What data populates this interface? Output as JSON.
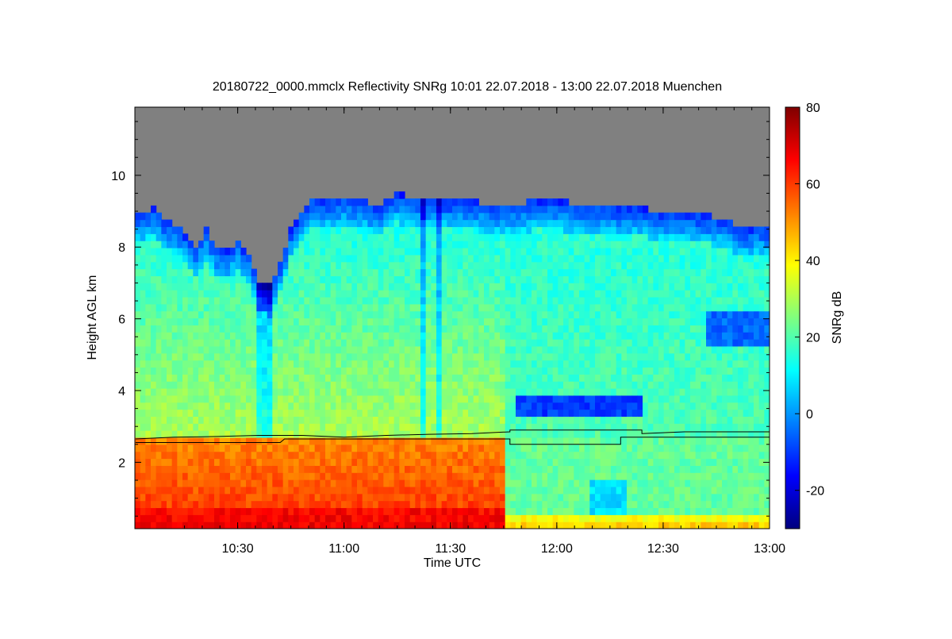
{
  "chart_data": {
    "type": "heatmap",
    "title": "20180722_0000.mmclx Reflectivity SNRg   10:01 22.07.2018 - 13:00 22.07.2018 Muenchen",
    "xlabel": "Time UTC",
    "ylabel": "Height AGL km",
    "xlim": [
      10.0167,
      13.0
    ],
    "ylim": [
      0.15,
      11.9
    ],
    "x_ticks": [
      {
        "value": 10.5,
        "label": "10:30"
      },
      {
        "value": 11.0,
        "label": "11:00"
      },
      {
        "value": 11.5,
        "label": "11:30"
      },
      {
        "value": 12.0,
        "label": "12:00"
      },
      {
        "value": 12.5,
        "label": "12:30"
      },
      {
        "value": 13.0,
        "label": "13:00"
      }
    ],
    "y_ticks": [
      {
        "value": 2,
        "label": "2"
      },
      {
        "value": 4,
        "label": "4"
      },
      {
        "value": 6,
        "label": "6"
      },
      {
        "value": 8,
        "label": "8"
      },
      {
        "value": 10,
        "label": "10"
      }
    ],
    "colorbar": {
      "label": "SNRg dB",
      "range": [
        -30,
        80
      ],
      "ticks": [
        {
          "value": -20,
          "label": "-20"
        },
        {
          "value": 0,
          "label": "0"
        },
        {
          "value": 20,
          "label": "20"
        },
        {
          "value": 40,
          "label": "40"
        },
        {
          "value": 60,
          "label": "60"
        },
        {
          "value": 80,
          "label": "80"
        }
      ],
      "colors": [
        "#00007f",
        "#0000ff",
        "#007fff",
        "#00ffff",
        "#7fff7f",
        "#ffff00",
        "#ff7f00",
        "#ff0000",
        "#7f0000"
      ]
    },
    "no_data_color": "#808080",
    "echo_top": [
      [
        10.02,
        8.9
      ],
      [
        10.1,
        9.1
      ],
      [
        10.15,
        8.8
      ],
      [
        10.22,
        8.6
      ],
      [
        10.3,
        8.0
      ],
      [
        10.35,
        8.5
      ],
      [
        10.4,
        8.0
      ],
      [
        10.45,
        7.9
      ],
      [
        10.5,
        8.2
      ],
      [
        10.55,
        7.8
      ],
      [
        10.6,
        7.1
      ],
      [
        10.65,
        6.9
      ],
      [
        10.7,
        7.6
      ],
      [
        10.75,
        8.5
      ],
      [
        10.8,
        9.0
      ],
      [
        10.85,
        9.4
      ],
      [
        10.9,
        9.3
      ],
      [
        11.0,
        9.4
      ],
      [
        11.1,
        9.3
      ],
      [
        11.15,
        9.1
      ],
      [
        11.2,
        9.3
      ],
      [
        11.25,
        9.5
      ],
      [
        11.3,
        9.4
      ],
      [
        11.4,
        9.3
      ],
      [
        11.5,
        9.3
      ],
      [
        11.6,
        9.3
      ],
      [
        11.7,
        9.2
      ],
      [
        11.8,
        9.2
      ],
      [
        11.9,
        9.3
      ],
      [
        12.0,
        9.3
      ],
      [
        12.1,
        9.2
      ],
      [
        12.2,
        9.2
      ],
      [
        12.3,
        9.1
      ],
      [
        12.4,
        9.1
      ],
      [
        12.5,
        9.0
      ],
      [
        12.6,
        9.0
      ],
      [
        12.7,
        8.9
      ],
      [
        12.8,
        8.8
      ],
      [
        12.85,
        8.6
      ],
      [
        12.9,
        8.5
      ],
      [
        12.95,
        8.6
      ],
      [
        13.0,
        8.5
      ]
    ],
    "melting_layer_top": [
      [
        10.02,
        2.65
      ],
      [
        10.2,
        2.7
      ],
      [
        10.4,
        2.72
      ],
      [
        10.6,
        2.75
      ],
      [
        10.8,
        2.75
      ],
      [
        11.0,
        2.7
      ],
      [
        11.2,
        2.75
      ],
      [
        11.4,
        2.78
      ],
      [
        11.6,
        2.8
      ],
      [
        11.78,
        2.85
      ],
      [
        11.78,
        2.9
      ],
      [
        12.4,
        2.9
      ],
      [
        12.4,
        2.8
      ],
      [
        12.6,
        2.85
      ],
      [
        13.0,
        2.85
      ]
    ],
    "melting_layer_bottom": [
      [
        10.02,
        2.55
      ],
      [
        10.7,
        2.55
      ],
      [
        10.72,
        2.65
      ],
      [
        11.2,
        2.65
      ],
      [
        11.5,
        2.65
      ],
      [
        11.78,
        2.65
      ],
      [
        11.78,
        2.5
      ],
      [
        12.3,
        2.5
      ],
      [
        12.3,
        2.7
      ],
      [
        13.0,
        2.7
      ]
    ]
  }
}
